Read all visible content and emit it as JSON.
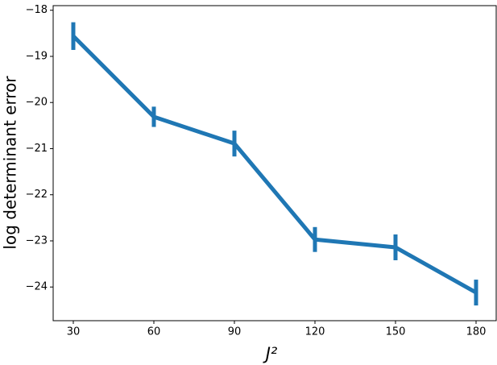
{
  "chart_data": {
    "type": "line",
    "xlabel": "J²",
    "ylabel": "log determinant error",
    "x": [
      30,
      60,
      90,
      120,
      150,
      180
    ],
    "values": [
      -18.56,
      -20.31,
      -20.89,
      -22.97,
      -23.14,
      -24.12
    ],
    "errors": [
      0.3,
      0.22,
      0.28,
      0.27,
      0.28,
      0.28
    ],
    "color": "#1f77b4",
    "xlim": [
      22.5,
      187.5
    ],
    "xticks": [
      30,
      60,
      90,
      120,
      150,
      180
    ],
    "ylim": [
      -24.73,
      -17.9
    ],
    "yticks": [
      {
        "value": -18,
        "label": "−18"
      },
      {
        "value": -19,
        "label": "−19"
      },
      {
        "value": -20,
        "label": "−20"
      },
      {
        "value": -21,
        "label": "−21"
      },
      {
        "value": -22,
        "label": "−22"
      },
      {
        "value": -23,
        "label": "−23"
      },
      {
        "value": -24,
        "label": "−24"
      }
    ]
  }
}
